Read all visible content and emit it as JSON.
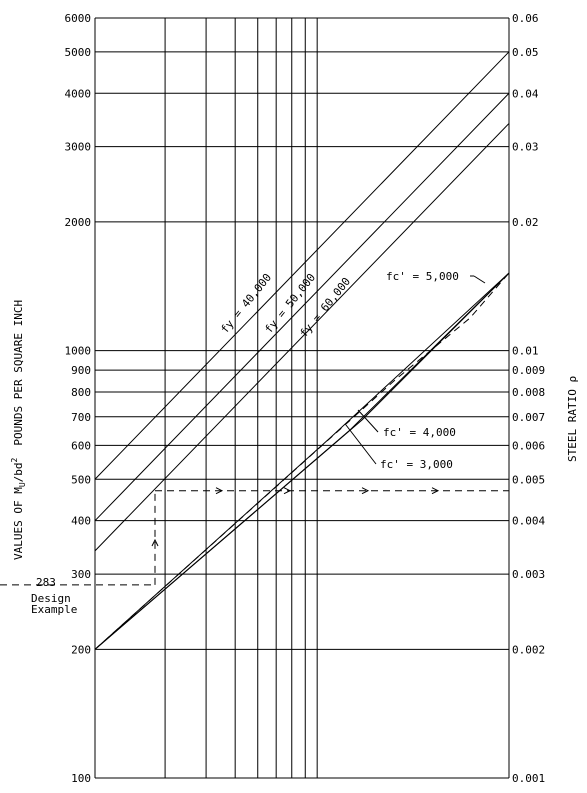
{
  "chart_data": {
    "type": "line",
    "left_axis": {
      "label_prefix": "VALUES OF M",
      "label_sub": "U",
      "label_mid": "/bd",
      "label_sup": "2",
      "units": "POUNDS PER SQUARE INCH",
      "scale": "log",
      "ylim": [
        100,
        6000
      ],
      "ticks": [
        "6000",
        "5000",
        "4000",
        "3000",
        "2000",
        "1000",
        "900",
        "800",
        "700",
        "600",
        "500",
        "400",
        "300",
        "200",
        "100"
      ]
    },
    "right_axis": {
      "label": "STEEL RATIO ρ",
      "scale": "log",
      "ylim": [
        0.001,
        0.06
      ],
      "ticks": [
        "0.06",
        "0.05",
        "0.04",
        "0.03",
        "0.02",
        "0.01",
        "0.009",
        "0.008",
        "0.007",
        "0.006",
        "0.005",
        "0.004",
        "0.003",
        "0.002",
        "0.001"
      ]
    },
    "grid": true,
    "series": [
      {
        "name": "fy = 40,000",
        "style": "solid",
        "points": [
          [
            0.005,
            500
          ],
          [
            0.05,
            5000
          ]
        ]
      },
      {
        "name": "fy = 50,000",
        "style": "solid",
        "points": [
          [
            0.004,
            400
          ],
          [
            0.04,
            4000
          ]
        ]
      },
      {
        "name": "fy = 60,000",
        "style": "solid",
        "points": [
          [
            0.0034,
            340
          ],
          [
            0.034,
            3400
          ]
        ]
      },
      {
        "name": "fc' = 5,000",
        "style": "solid",
        "points": [
          [
            0.002,
            200
          ],
          [
            0.015,
            1500
          ]
        ]
      },
      {
        "name": "fc' = 4,000",
        "style": "solid",
        "points": [
          [
            0.002,
            200
          ],
          [
            0.015,
            1500
          ]
        ]
      },
      {
        "name": "fc' = 3,000",
        "style": "solid",
        "points": [
          [
            0.002,
            200
          ],
          [
            0.015,
            1500
          ]
        ]
      }
    ],
    "annotations": [
      {
        "text": "fy = 40,000"
      },
      {
        "text": "fy = 50,000"
      },
      {
        "text": "fy = 60,000"
      },
      {
        "text": "fc' = 5,000"
      },
      {
        "text": "fc' = 4,000"
      },
      {
        "text": "fc' = 3,000"
      },
      {
        "text": "283"
      },
      {
        "text": "Design"
      },
      {
        "text": "Example"
      }
    ],
    "design_example": {
      "value": 283,
      "result": 470
    }
  }
}
